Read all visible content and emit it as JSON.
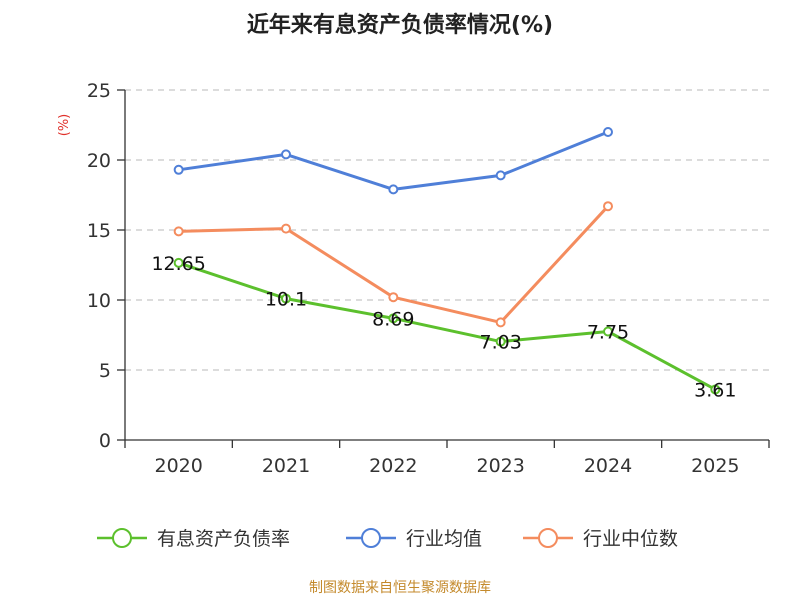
{
  "chart_data": {
    "type": "line",
    "title": "近年来有息资产负债率情况(%)",
    "ylabel": "(%)",
    "xlabel": "",
    "categories": [
      "2020",
      "2021",
      "2022",
      "2023",
      "2024",
      "2025"
    ],
    "ylim": [
      0,
      25
    ],
    "yticks": [
      0,
      5,
      10,
      15,
      20,
      25
    ],
    "grid": true,
    "legend_position": "bottom",
    "series": [
      {
        "name": "有息资产负债率",
        "color": "#5cc02d",
        "values": [
          12.65,
          10.1,
          8.69,
          7.03,
          7.75,
          3.61
        ],
        "labels": [
          "12.65",
          "10.1",
          "8.69",
          "7.03",
          "7.75",
          "3.61"
        ]
      },
      {
        "name": "行业均值",
        "color": "#4f7fd8",
        "values": [
          19.3,
          20.4,
          17.9,
          18.9,
          22.0,
          null
        ]
      },
      {
        "name": "行业中位数",
        "color": "#f48c5e",
        "values": [
          14.9,
          15.1,
          10.2,
          8.4,
          16.7,
          null
        ]
      }
    ],
    "source": "制图数据来自恒生聚源数据库"
  }
}
